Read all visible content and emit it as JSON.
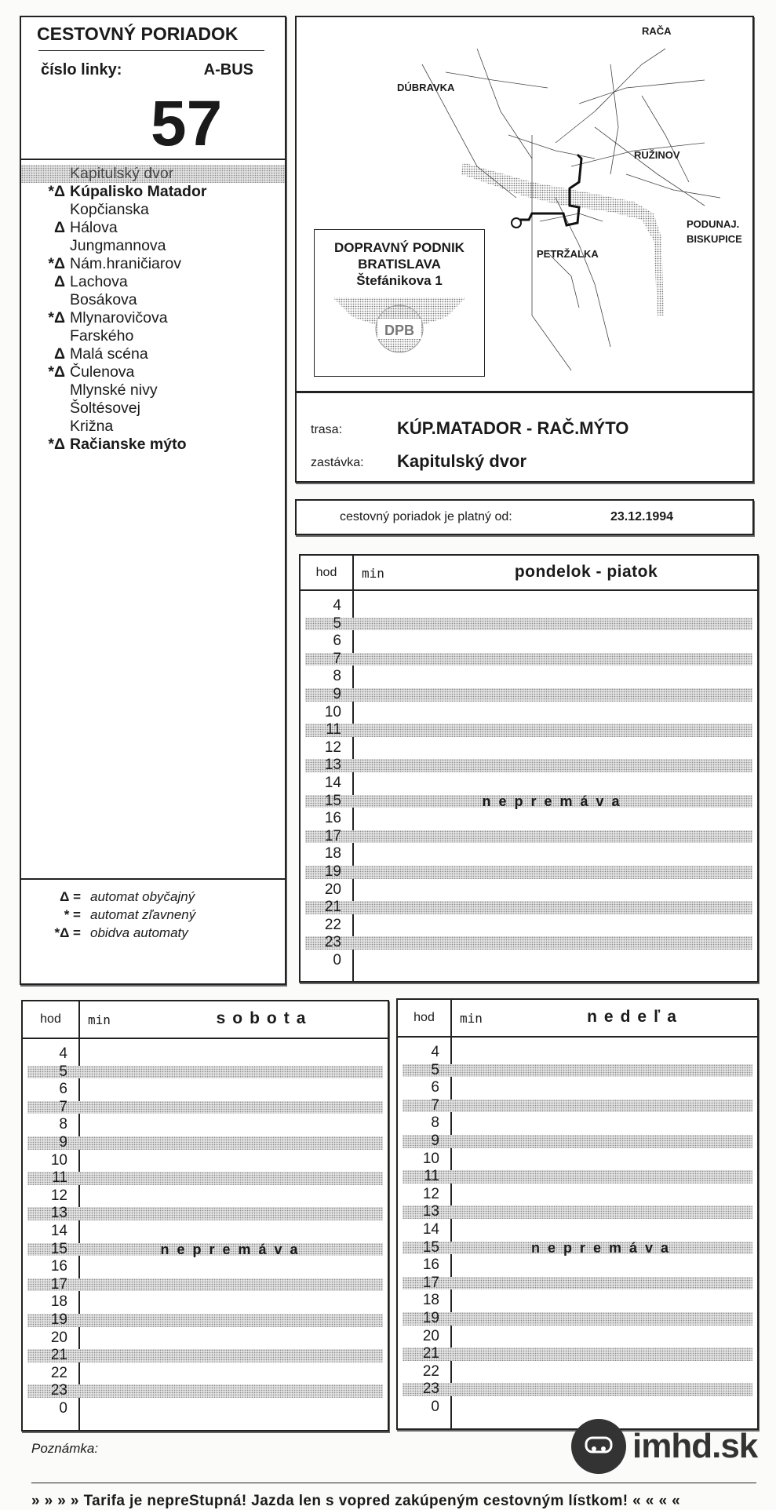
{
  "header": {
    "title": "CESTOVNÝ PORIADOK",
    "line_label": "číslo linky:",
    "vehicle": "A-BUS",
    "line_number": "57"
  },
  "stops": [
    {
      "marker": "",
      "name": "Kapitulský dvor",
      "bold": false,
      "current": true
    },
    {
      "marker": "*Δ",
      "name": "Kúpalisko Matador",
      "bold": true
    },
    {
      "marker": "",
      "name": "Kopčianska",
      "bold": false
    },
    {
      "marker": "Δ",
      "name": "Hálova",
      "bold": false
    },
    {
      "marker": "",
      "name": "Jungmannova",
      "bold": false
    },
    {
      "marker": "*Δ",
      "name": "Nám.hraničiarov",
      "bold": false
    },
    {
      "marker": "Δ",
      "name": "Lachova",
      "bold": false
    },
    {
      "marker": "",
      "name": "Bosákova",
      "bold": false
    },
    {
      "marker": "*Δ",
      "name": "Mlynarovičova",
      "bold": false
    },
    {
      "marker": "",
      "name": "Farského",
      "bold": false
    },
    {
      "marker": "Δ",
      "name": "Malá scéna",
      "bold": false
    },
    {
      "marker": "*Δ",
      "name": "Čulenova",
      "bold": false
    },
    {
      "marker": "",
      "name": "Mlynské nivy",
      "bold": false
    },
    {
      "marker": "",
      "name": "Šoltésovej",
      "bold": false
    },
    {
      "marker": "",
      "name": "Križna",
      "bold": false
    },
    {
      "marker": "*Δ",
      "name": "Račianske mýto",
      "bold": true
    }
  ],
  "legend": [
    {
      "key": "Δ =",
      "value": "automat obyčajný"
    },
    {
      "key": "* =",
      "value": "automat zľavnený"
    },
    {
      "key": "*Δ =",
      "value": "obidva automaty"
    }
  ],
  "map": {
    "labels": {
      "raca": "RAČA",
      "dubravka": "DÚBRAVKA",
      "ruzinov": "RUŽINOV",
      "podunaj1": "PODUNAJ.",
      "podunaj2": "BISKUPICE",
      "petrzalka": "PETRŽALKA"
    },
    "company": {
      "line1": "DOPRAVNÝ PODNIK",
      "line2": "BRATISLAVA",
      "line3": "Štefánikova 1",
      "logo_text": "DPB"
    }
  },
  "route": {
    "trasa_label": "trasa:",
    "trasa": "KÚP.MATADOR - RAČ.MÝTO",
    "stop_label": "zastávka:",
    "stop": "Kapitulský dvor"
  },
  "validity": {
    "label": "cestovný poriadok je platný od:",
    "date": "23.12.1994"
  },
  "timetable": {
    "hour_header": "hod",
    "minute_header": "min",
    "hours": [
      "4",
      "5",
      "6",
      "7",
      "8",
      "9",
      "10",
      "11",
      "12",
      "13",
      "14",
      "15",
      "16",
      "17",
      "18",
      "19",
      "20",
      "21",
      "22",
      "23",
      "0"
    ],
    "weekday": {
      "title": "pondelok - piatok",
      "status": "nepremáva"
    },
    "saturday": {
      "title": "sobota",
      "status": "nepremáva"
    },
    "sunday": {
      "title": "nedeľa",
      "status": "nepremáva"
    }
  },
  "footer": {
    "note_label": "Poznámka:",
    "brand": "imhd.sk",
    "tariff": "» » » »  Tarifa je nepreStupná! Jazda len s vopred zakúpeným cestovným lístkom!  « « « «"
  }
}
